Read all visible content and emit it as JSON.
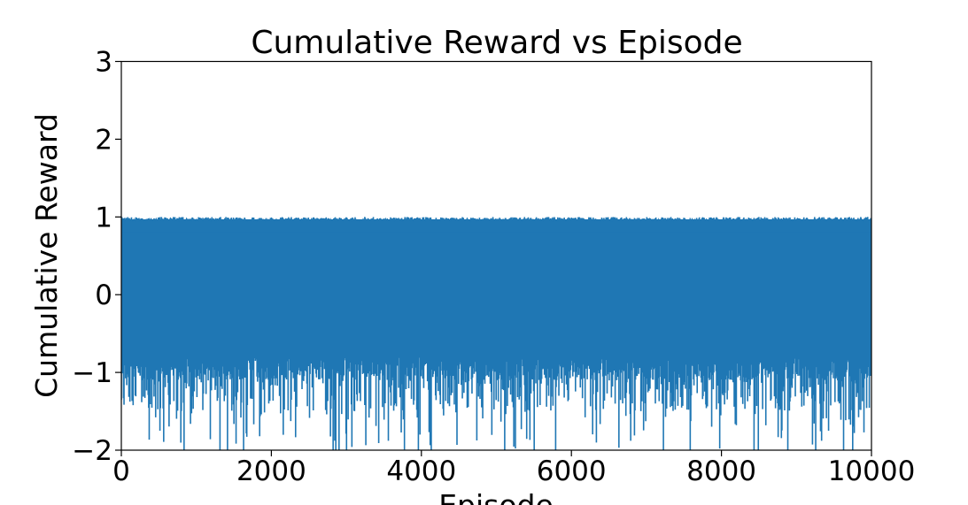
{
  "chart_data": {
    "type": "line",
    "title": "Cumulative Reward vs Episode",
    "xlabel": "Episode",
    "ylabel": "Cumulative Reward",
    "xlim": [
      0,
      10000
    ],
    "ylim": [
      -2,
      3
    ],
    "x_ticks": [
      0,
      2000,
      4000,
      6000,
      8000,
      10000
    ],
    "y_ticks": [
      -2,
      -1,
      0,
      1,
      2,
      3
    ],
    "x_tick_labels": [
      "0",
      "2000",
      "4000",
      "6000",
      "8000",
      "10000"
    ],
    "y_tick_labels": [
      "−2",
      "−1",
      "0",
      "1",
      "2",
      "3"
    ],
    "grid": false,
    "legend": "none",
    "series": [
      {
        "color": "#1f77b4",
        "episodes": 10000,
        "typical_max": 1.0,
        "typical_min": -0.9,
        "extreme_min": -2.0,
        "description_values": "rapidly oscillating reward between about -2 and 1 across all 10000 episodes"
      }
    ]
  }
}
